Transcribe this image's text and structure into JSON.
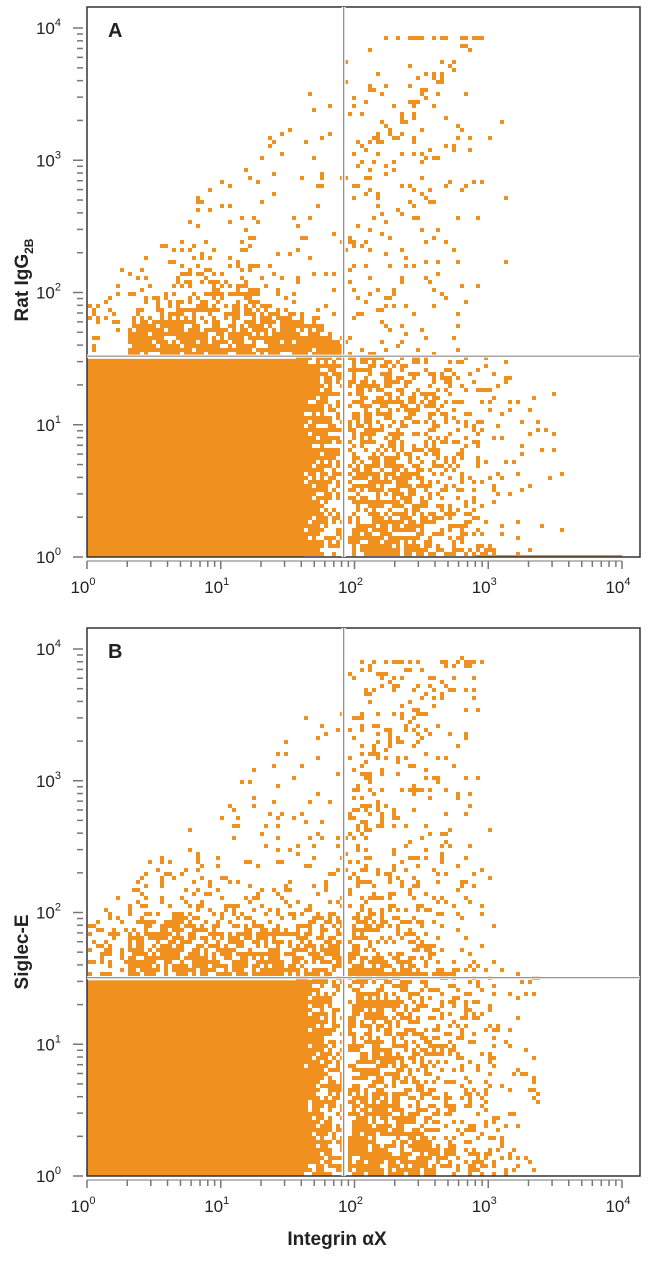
{
  "chart_data": [
    {
      "type": "scatter",
      "subtype": "flow-cytometry-dot-plot",
      "panel_label": "A",
      "xlabel": "Integrin αX",
      "ylabel": "Rat IgG",
      "ylabel_sub": "2B",
      "xscale": "log",
      "yscale": "log",
      "xlim": [
        1,
        10000
      ],
      "ylim": [
        1,
        10000
      ],
      "x_ticks": [
        "10",
        "10",
        "10",
        "10",
        "10"
      ],
      "x_tick_exp": [
        "0",
        "1",
        "2",
        "3",
        "4"
      ],
      "y_ticks": [
        "10",
        "10",
        "10",
        "10",
        "10"
      ],
      "y_tick_exp": [
        "0",
        "1",
        "2",
        "3",
        "4"
      ],
      "quadrant_gate": {
        "x": 83,
        "y": 33
      },
      "grid": false,
      "point_color": "#F0901E"
    },
    {
      "type": "scatter",
      "subtype": "flow-cytometry-dot-plot",
      "panel_label": "B",
      "xlabel": "Integrin αX",
      "ylabel": "Siglec-E",
      "xscale": "log",
      "yscale": "log",
      "xlim": [
        1,
        10000
      ],
      "ylim": [
        1,
        10000
      ],
      "x_ticks": [
        "10",
        "10",
        "10",
        "10",
        "10"
      ],
      "x_tick_exp": [
        "0",
        "1",
        "2",
        "3",
        "4"
      ],
      "y_ticks": [
        "10",
        "10",
        "10",
        "10",
        "10"
      ],
      "y_tick_exp": [
        "0",
        "1",
        "2",
        "3",
        "4"
      ],
      "quadrant_gate": {
        "x": 83,
        "y": 32
      },
      "grid": false,
      "point_color": "#F0901E"
    }
  ],
  "shared_xlabel": "Integrin αX"
}
